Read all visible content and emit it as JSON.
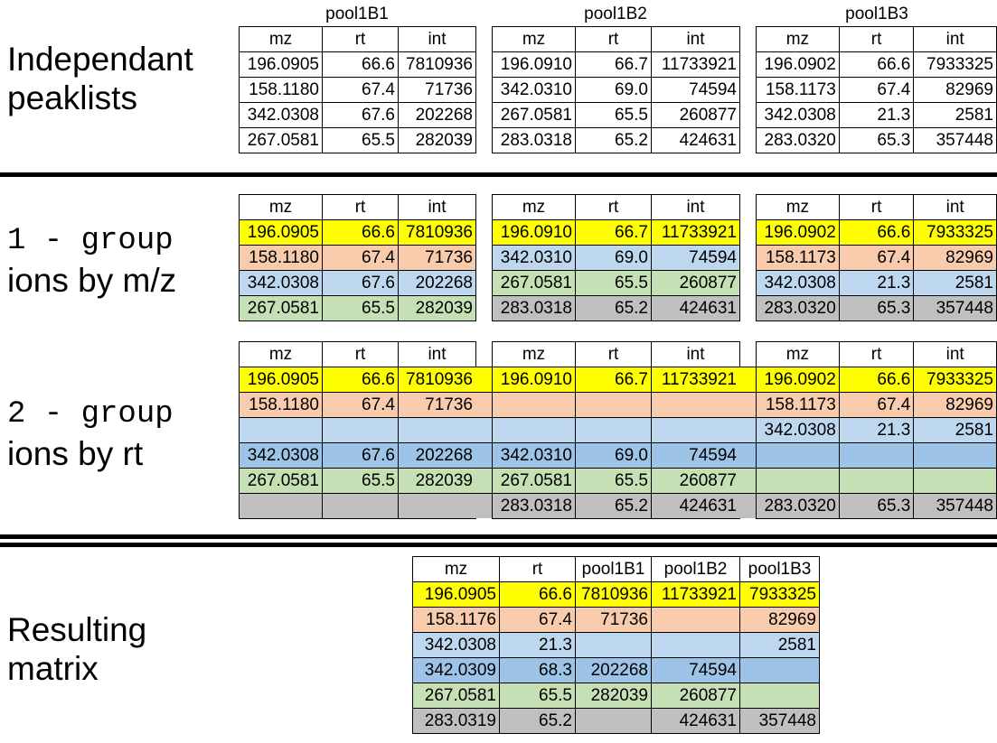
{
  "labels": {
    "section1": [
      "Independant",
      "peaklists"
    ],
    "section2_mono": "1 - group",
    "section2_rest": "ions by m/z",
    "section3_mono": "2 - group",
    "section3_rest": "ions by rt",
    "section4": [
      "Resulting",
      "matrix"
    ]
  },
  "colors": {
    "yellow": "#ffff00",
    "orange": "#f8cbad",
    "lightblue": "#bdd7ee",
    "blue": "#9dc3e6",
    "green": "#c5e0b4",
    "gray": "#bfbfbf",
    "white": "#ffffff"
  },
  "headers": [
    "mz",
    "rt",
    "int"
  ],
  "peaklists": [
    {
      "name": "pool1B1",
      "rows": [
        [
          "196.0905",
          "66.6",
          "7810936"
        ],
        [
          "158.1180",
          "67.4",
          "71736"
        ],
        [
          "342.0308",
          "67.6",
          "202268"
        ],
        [
          "267.0581",
          "65.5",
          "282039"
        ]
      ]
    },
    {
      "name": "pool1B2",
      "rows": [
        [
          "196.0910",
          "66.7",
          "11733921"
        ],
        [
          "342.0310",
          "69.0",
          "74594"
        ],
        [
          "267.0581",
          "65.5",
          "260877"
        ],
        [
          "283.0318",
          "65.2",
          "424631"
        ]
      ]
    },
    {
      "name": "pool1B3",
      "rows": [
        [
          "196.0902",
          "66.6",
          "7933325"
        ],
        [
          "158.1173",
          "67.4",
          "82969"
        ],
        [
          "342.0308",
          "21.3",
          "2581"
        ],
        [
          "283.0320",
          "65.3",
          "357448"
        ]
      ]
    }
  ],
  "group_mz": [
    {
      "rows": [
        [
          "196.0905",
          "66.6",
          "7810936"
        ],
        [
          "158.1180",
          "67.4",
          "71736"
        ],
        [
          "342.0308",
          "67.6",
          "202268"
        ],
        [
          "267.0581",
          "65.5",
          "282039"
        ]
      ],
      "colors": [
        "yellow",
        "orange",
        "lightblue",
        "green"
      ]
    },
    {
      "rows": [
        [
          "196.0910",
          "66.7",
          "11733921"
        ],
        [
          "342.0310",
          "69.0",
          "74594"
        ],
        [
          "267.0581",
          "65.5",
          "260877"
        ],
        [
          "283.0318",
          "65.2",
          "424631"
        ]
      ],
      "colors": [
        "yellow",
        "lightblue",
        "green",
        "gray"
      ]
    },
    {
      "rows": [
        [
          "196.0902",
          "66.6",
          "7933325"
        ],
        [
          "158.1173",
          "67.4",
          "82969"
        ],
        [
          "342.0308",
          "21.3",
          "2581"
        ],
        [
          "283.0320",
          "65.3",
          "357448"
        ]
      ],
      "colors": [
        "yellow",
        "orange",
        "lightblue",
        "gray"
      ]
    }
  ],
  "group_rt": {
    "colors": [
      "yellow",
      "orange",
      "lightblue",
      "blue",
      "green",
      "gray"
    ],
    "tables": [
      {
        "rows": [
          [
            "196.0905",
            "66.6",
            "7810936"
          ],
          [
            "158.1180",
            "67.4",
            "71736"
          ],
          [
            "",
            "",
            ""
          ],
          [
            "342.0308",
            "67.6",
            "202268"
          ],
          [
            "267.0581",
            "65.5",
            "282039"
          ],
          [
            "",
            "",
            ""
          ]
        ]
      },
      {
        "rows": [
          [
            "196.0910",
            "66.7",
            "11733921"
          ],
          [
            "",
            "",
            ""
          ],
          [
            "",
            "",
            ""
          ],
          [
            "342.0310",
            "69.0",
            "74594"
          ],
          [
            "267.0581",
            "65.5",
            "260877"
          ],
          [
            "283.0318",
            "65.2",
            "424631"
          ]
        ]
      },
      {
        "rows": [
          [
            "196.0902",
            "66.6",
            "7933325"
          ],
          [
            "158.1173",
            "67.4",
            "82969"
          ],
          [
            "342.0308",
            "21.3",
            "2581"
          ],
          [
            "",
            "",
            ""
          ],
          [
            "",
            "",
            ""
          ],
          [
            "283.0320",
            "65.3",
            "357448"
          ]
        ]
      }
    ]
  },
  "matrix": {
    "headers": [
      "mz",
      "rt",
      "pool1B1",
      "pool1B2",
      "pool1B3"
    ],
    "colors": [
      "yellow",
      "orange",
      "lightblue",
      "blue",
      "green",
      "gray"
    ],
    "rows": [
      [
        "196.0905",
        "66.6",
        "7810936",
        "11733921",
        "7933325"
      ],
      [
        "158.1176",
        "67.4",
        "71736",
        "",
        "82969"
      ],
      [
        "342.0308",
        "21.3",
        "",
        "",
        "2581"
      ],
      [
        "342.0309",
        "68.3",
        "202268",
        "74594",
        ""
      ],
      [
        "267.0581",
        "65.5",
        "282039",
        "260877",
        ""
      ],
      [
        "283.0319",
        "65.2",
        "",
        "424631",
        "357448"
      ]
    ]
  }
}
